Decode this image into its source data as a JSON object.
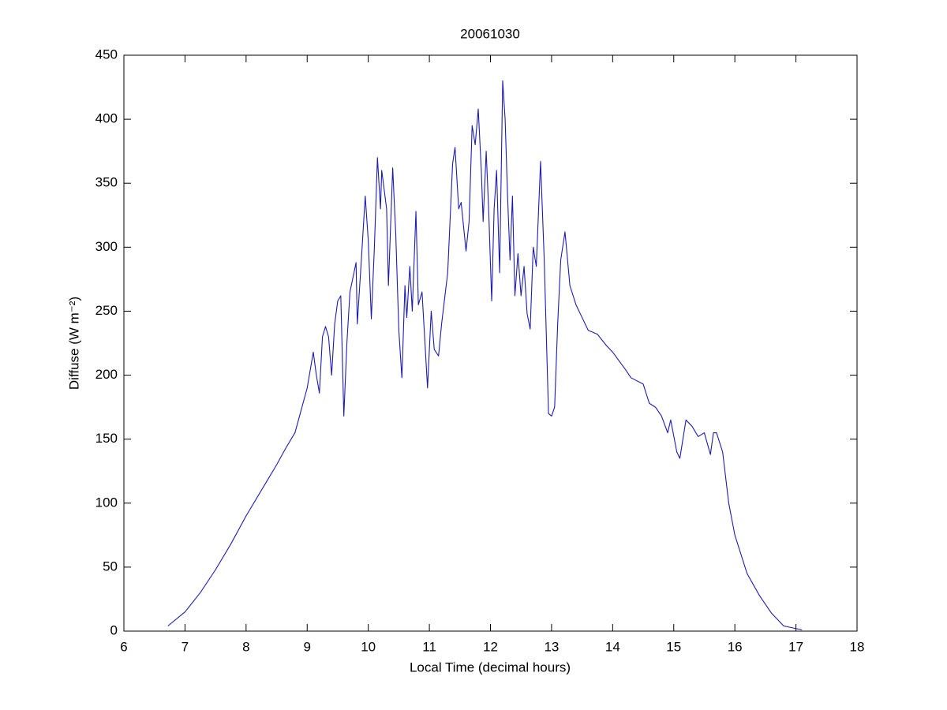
{
  "chart_data": {
    "type": "line",
    "title": "20061030",
    "xlabel": "Local Time (decimal hours)",
    "ylabel": "Diffuse (W m⁻²)",
    "xlim": [
      6,
      18
    ],
    "xticks": [
      6,
      7,
      8,
      9,
      10,
      11,
      12,
      13,
      14,
      15,
      16,
      17,
      18
    ],
    "ylim": [
      0,
      450
    ],
    "yticks": [
      0,
      50,
      100,
      150,
      200,
      250,
      300,
      350,
      400,
      450
    ],
    "grid": false,
    "x": [
      6.72,
      7.0,
      7.25,
      7.5,
      7.75,
      8.0,
      8.25,
      8.5,
      8.65,
      8.8,
      9.0,
      9.1,
      9.15,
      9.2,
      9.25,
      9.3,
      9.35,
      9.4,
      9.45,
      9.5,
      9.55,
      9.6,
      9.65,
      9.7,
      9.8,
      9.82,
      9.88,
      9.95,
      10.0,
      10.05,
      10.1,
      10.15,
      10.2,
      10.22,
      10.3,
      10.33,
      10.4,
      10.45,
      10.5,
      10.55,
      10.6,
      10.63,
      10.68,
      10.72,
      10.78,
      10.82,
      10.88,
      10.97,
      11.03,
      11.08,
      11.15,
      11.2,
      11.3,
      11.38,
      11.42,
      11.48,
      11.52,
      11.6,
      11.65,
      11.7,
      11.75,
      11.8,
      11.85,
      11.88,
      11.93,
      11.97,
      12.02,
      12.06,
      12.1,
      12.15,
      12.2,
      12.24,
      12.28,
      12.32,
      12.36,
      12.4,
      12.45,
      12.5,
      12.55,
      12.6,
      12.65,
      12.7,
      12.75,
      12.82,
      12.88,
      12.95,
      13.0,
      13.05,
      13.1,
      13.15,
      13.22,
      13.3,
      13.4,
      13.5,
      13.6,
      13.75,
      13.9,
      14.0,
      14.2,
      14.3,
      14.5,
      14.6,
      14.7,
      14.8,
      14.9,
      14.95,
      15.05,
      15.1,
      15.2,
      15.3,
      15.4,
      15.5,
      15.6,
      15.65,
      15.7,
      15.8,
      15.9,
      16.0,
      16.2,
      16.4,
      16.6,
      16.8,
      17.1
    ],
    "series": [
      {
        "name": "Diffuse",
        "color": "#1c1cb0",
        "values": [
          4,
          15,
          30,
          48,
          68,
          90,
          110,
          130,
          143,
          155,
          190,
          218,
          200,
          186,
          230,
          238,
          230,
          200,
          240,
          258,
          262,
          168,
          225,
          265,
          288,
          240,
          285,
          340,
          305,
          244,
          300,
          370,
          330,
          360,
          330,
          270,
          362,
          310,
          235,
          198,
          270,
          245,
          285,
          250,
          328,
          255,
          265,
          190,
          250,
          220,
          215,
          240,
          280,
          365,
          378,
          330,
          335,
          297,
          320,
          395,
          380,
          408,
          360,
          320,
          375,
          330,
          258,
          330,
          360,
          280,
          430,
          400,
          340,
          290,
          340,
          262,
          295,
          262,
          285,
          248,
          236,
          300,
          285,
          367,
          290,
          170,
          168,
          175,
          240,
          290,
          312,
          270,
          255,
          245,
          235,
          232,
          223,
          218,
          205,
          198,
          193,
          178,
          175,
          168,
          155,
          165,
          140,
          135,
          165,
          160,
          152,
          155,
          138,
          155,
          155,
          140,
          100,
          75,
          45,
          28,
          14,
          4,
          1
        ]
      }
    ]
  }
}
